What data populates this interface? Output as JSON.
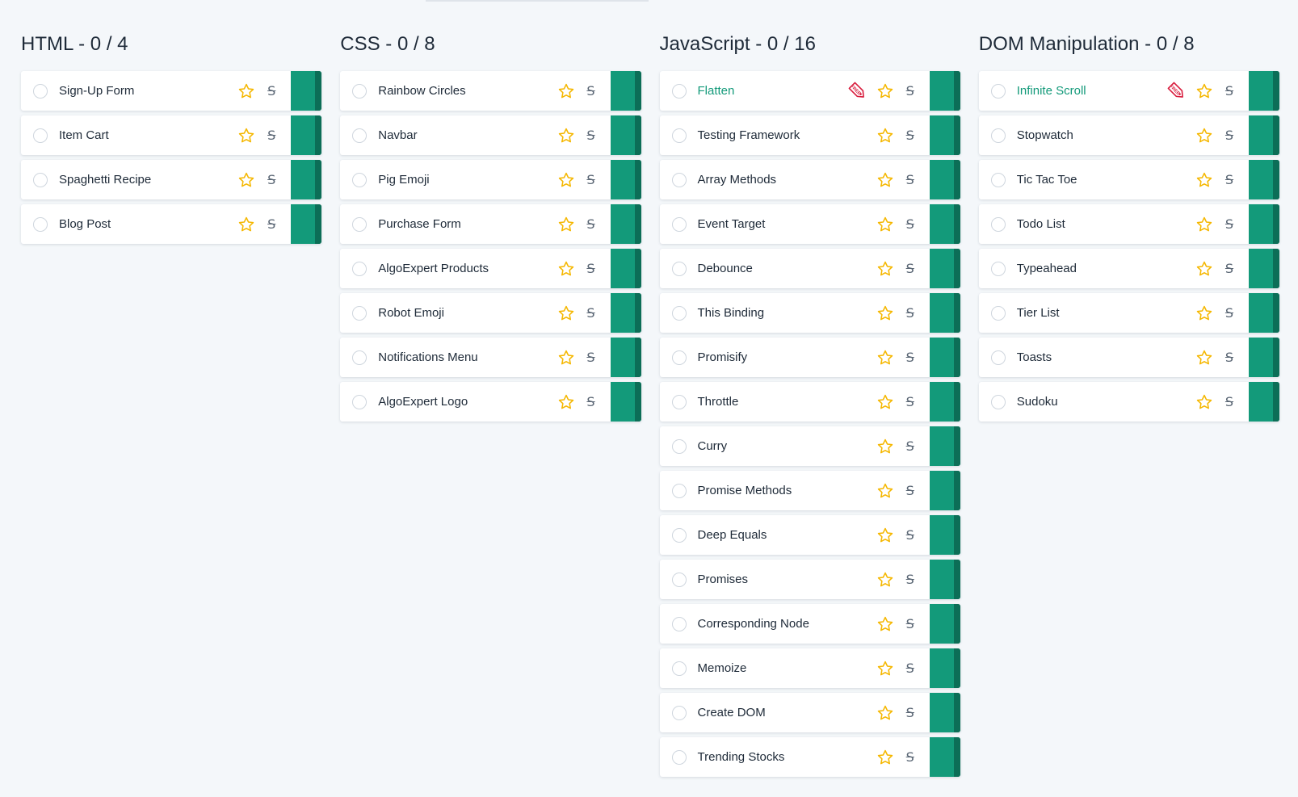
{
  "columns": [
    {
      "title": "HTML",
      "progress": "0 / 4",
      "items": [
        {
          "label": "Sign-Up Form",
          "free": false
        },
        {
          "label": "Item Cart",
          "free": false
        },
        {
          "label": "Spaghetti Recipe",
          "free": false
        },
        {
          "label": "Blog Post",
          "free": false
        }
      ]
    },
    {
      "title": "CSS",
      "progress": "0 / 8",
      "items": [
        {
          "label": "Rainbow Circles",
          "free": false
        },
        {
          "label": "Navbar",
          "free": false
        },
        {
          "label": "Pig Emoji",
          "free": false
        },
        {
          "label": "Purchase Form",
          "free": false
        },
        {
          "label": "AlgoExpert Products",
          "free": false
        },
        {
          "label": "Robot Emoji",
          "free": false
        },
        {
          "label": "Notifications Menu",
          "free": false
        },
        {
          "label": "AlgoExpert Logo",
          "free": false
        }
      ]
    },
    {
      "title": "JavaScript",
      "progress": "0 / 16",
      "items": [
        {
          "label": "Flatten",
          "free": true
        },
        {
          "label": "Testing Framework",
          "free": false
        },
        {
          "label": "Array Methods",
          "free": false
        },
        {
          "label": "Event Target",
          "free": false
        },
        {
          "label": "Debounce",
          "free": false
        },
        {
          "label": "This Binding",
          "free": false
        },
        {
          "label": "Promisify",
          "free": false
        },
        {
          "label": "Throttle",
          "free": false
        },
        {
          "label": "Curry",
          "free": false
        },
        {
          "label": "Promise Methods",
          "free": false
        },
        {
          "label": "Deep Equals",
          "free": false
        },
        {
          "label": "Promises",
          "free": false
        },
        {
          "label": "Corresponding Node",
          "free": false
        },
        {
          "label": "Memoize",
          "free": false
        },
        {
          "label": "Create DOM",
          "free": false
        },
        {
          "label": "Trending Stocks",
          "free": false
        }
      ]
    },
    {
      "title": "DOM Manipulation",
      "progress": "0 / 8",
      "items": [
        {
          "label": "Infinite Scroll",
          "free": true
        },
        {
          "label": "Stopwatch",
          "free": false
        },
        {
          "label": "Tic Tac Toe",
          "free": false
        },
        {
          "label": "Todo List",
          "free": false
        },
        {
          "label": "Typeahead",
          "free": false
        },
        {
          "label": "Tier List",
          "free": false
        },
        {
          "label": "Toasts",
          "free": false
        },
        {
          "label": "Sudoku",
          "free": false
        }
      ]
    }
  ],
  "free_tag_text": "FREE",
  "title_separator": "-",
  "icons": {
    "checkbox": "circle-checkbox-icon",
    "star": "star-icon",
    "strike": "strikethrough-icon",
    "tag": "free-tag-icon"
  },
  "colors": {
    "accent": "#139a7a",
    "accent_dark": "#0c6e57",
    "star": "#f5b700",
    "tag": "#d81b3c",
    "text": "#1e2a38",
    "background": "#f4f7fa"
  }
}
